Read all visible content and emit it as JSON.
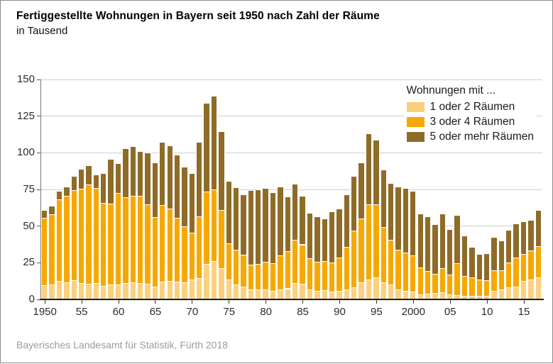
{
  "header": {
    "title": "Fertiggestellte Wohnungen in Bayern seit 1950 nach Zahl der Räume",
    "subtitle": "in Tausend"
  },
  "footer": {
    "source": "Bayerisches Landesamt für Statistik, Fürth 2018"
  },
  "legend": {
    "title": "Wohnungen mit ...",
    "items": [
      {
        "label": "1 oder 2 Räumen",
        "color": "#F9CF79"
      },
      {
        "label": "3 oder 4 Räumen",
        "color": "#F6A800"
      },
      {
        "label": "5 oder mehr Räumen",
        "color": "#8E6C28"
      }
    ]
  },
  "chart_data": {
    "type": "bar",
    "stacked": true,
    "title": "Fertiggestellte Wohnungen in Bayern seit 1950 nach Zahl der Räume",
    "ylabel": "in Tausend",
    "ylim": [
      0,
      150
    ],
    "yticks": [
      0,
      25,
      50,
      75,
      100,
      125,
      150
    ],
    "grid": true,
    "legend_position": "top-right",
    "years": [
      1950,
      1951,
      1952,
      1953,
      1954,
      1955,
      1956,
      1957,
      1958,
      1959,
      1960,
      1961,
      1962,
      1963,
      1964,
      1965,
      1966,
      1967,
      1968,
      1969,
      1970,
      1971,
      1972,
      1973,
      1974,
      1975,
      1976,
      1977,
      1978,
      1979,
      1980,
      1981,
      1982,
      1983,
      1984,
      1985,
      1986,
      1987,
      1988,
      1989,
      1990,
      1991,
      1992,
      1993,
      1994,
      1995,
      1996,
      1997,
      1998,
      1999,
      2000,
      2001,
      2002,
      2003,
      2004,
      2005,
      2006,
      2007,
      2008,
      2009,
      2010,
      2011,
      2012,
      2013,
      2014,
      2015,
      2016,
      2017
    ],
    "xticks": [
      1950,
      1955,
      1960,
      1965,
      1970,
      1975,
      1980,
      1985,
      1990,
      1995,
      2000,
      2005,
      2010,
      2015
    ],
    "xtick_labels": [
      "1950",
      "55",
      "60",
      "65",
      "70",
      "75",
      "80",
      "85",
      "90",
      "95",
      "2000",
      "05",
      "10",
      "15"
    ],
    "series": [
      {
        "name": "1 oder 2 Räumen",
        "color": "#FBD180",
        "values": [
          9.5,
          10,
          12.5,
          11.5,
          13,
          11,
          10.5,
          11,
          9,
          10,
          10,
          11,
          11.5,
          11,
          10.5,
          8.5,
          12,
          12.5,
          12,
          11.5,
          13.5,
          14.5,
          24,
          26,
          21.5,
          13.5,
          10,
          8.5,
          7,
          7,
          7,
          6,
          7,
          7.5,
          11,
          10.5,
          7,
          6,
          6.5,
          5.5,
          6,
          7,
          8,
          11.5,
          13.5,
          15,
          11.5,
          10,
          7,
          6,
          5.5,
          3.5,
          4,
          4.5,
          5,
          3.5,
          3,
          2.5,
          2.5,
          2.5,
          2.5,
          6,
          7,
          8,
          8.5,
          12.5,
          13.5,
          15
        ]
      },
      {
        "name": "3 oder 4 Räumen",
        "color": "#F6A800",
        "values": [
          46,
          48,
          55.5,
          59,
          61.5,
          64.5,
          68,
          65,
          57,
          55.5,
          62.5,
          58.5,
          59,
          59.5,
          54.5,
          47.5,
          52.5,
          49.5,
          43.5,
          38.5,
          32,
          42,
          49.5,
          49,
          39.5,
          24.5,
          24,
          22,
          16.5,
          17,
          18.5,
          18.5,
          23,
          25.5,
          29.5,
          27,
          21,
          19.5,
          19.5,
          19.5,
          22.5,
          29,
          39,
          43.5,
          51.5,
          50,
          38,
          30.5,
          27,
          26,
          24.5,
          18.5,
          15.5,
          13,
          16.5,
          13.5,
          21.5,
          13.5,
          12.5,
          11,
          10.5,
          14,
          13,
          17,
          20,
          18.5,
          20,
          21.5
        ]
      },
      {
        "name": "5 oder mehr Räumen",
        "color": "#8E6C28",
        "values": [
          5.5,
          6,
          6,
          6.5,
          9.5,
          13.5,
          13,
          9,
          20,
          30.5,
          20.5,
          33.5,
          34,
          30.5,
          35,
          37.5,
          43,
          43,
          43,
          40.5,
          40.5,
          51,
          60.5,
          64,
          53.5,
          43,
          42.5,
          41,
          51,
          51,
          50.5,
          48.5,
          47,
          37,
          38.5,
          33,
          31,
          31,
          29,
          35,
          33.5,
          35.5,
          37,
          38.5,
          48,
          44,
          39,
          39,
          43,
          44,
          44,
          36.5,
          37,
          34,
          37,
          31,
          33,
          27.5,
          21,
          17.5,
          18.5,
          22.5,
          20,
          22.5,
          23.5,
          22,
          20.5,
          24.5
        ]
      }
    ]
  },
  "layout_text": {
    "note": ""
  }
}
